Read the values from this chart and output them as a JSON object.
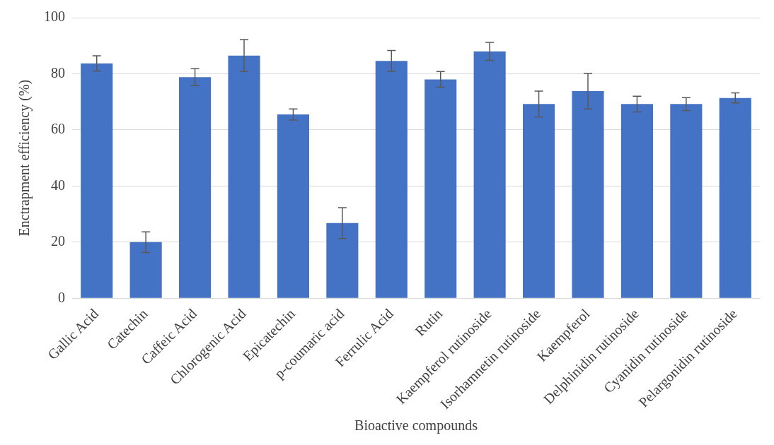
{
  "chart_data": {
    "type": "bar",
    "xlabel": "Bioactive compounds",
    "ylabel": "Enctrapment efficiency (%)",
    "categories": [
      "Gallic Acid",
      "Catechin",
      "Caffeic Acid",
      "Chlorogenic Acid",
      "Epicatechin",
      "p-coumaric acid",
      "Ferrulic Acid",
      "Rutin",
      "Kaempferol rutinoside",
      "Isorhamnetin rutinoside",
      "Kaempferol",
      "Delphinidin rutinoside",
      "Cyanidin rutinoside",
      "Pelargonidin rutinoside"
    ],
    "values": [
      83.7,
      20,
      78.8,
      86.5,
      65.5,
      26.8,
      84.6,
      78,
      88,
      69.2,
      73.8,
      69.2,
      69.2,
      71.4
    ],
    "errors": [
      2.7,
      3.7,
      3,
      5.7,
      2,
      5.5,
      3.7,
      2.8,
      3.2,
      4.6,
      6.3,
      2.8,
      2.3,
      1.8
    ],
    "color": "#4472c4",
    "ylim": [
      0,
      100
    ],
    "yticks": [
      0,
      20,
      40,
      60,
      80,
      100
    ],
    "grid": "y",
    "legend": false
  }
}
